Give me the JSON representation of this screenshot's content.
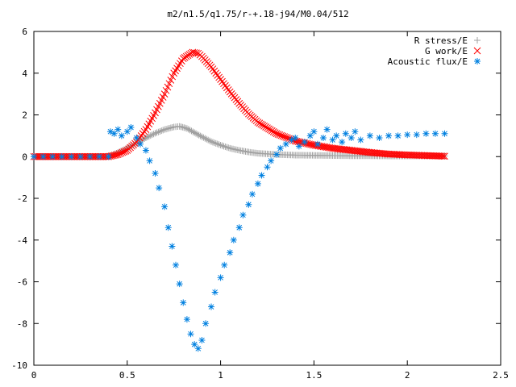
{
  "chart_data": {
    "type": "scatter",
    "title": "m2/n1.5/q1.75/r-+.18-j94/M0.04/512",
    "xlabel": "",
    "ylabel": "",
    "xlim": [
      0,
      2.5
    ],
    "ylim": [
      -10,
      6
    ],
    "xticks": [
      0,
      0.5,
      1,
      1.5,
      2,
      2.5
    ],
    "xtick_labels": [
      "0",
      "0.5",
      "1",
      "1.5",
      "2",
      "2.5"
    ],
    "yticks": [
      -10,
      -8,
      -6,
      -4,
      -2,
      0,
      2,
      4,
      6
    ],
    "ytick_labels": [
      "-10",
      "-8",
      "-6",
      "-4",
      "-2",
      "0",
      "2",
      "4",
      "6"
    ],
    "grid": false,
    "legend_position": "top-right",
    "series": [
      {
        "name": "R stress/E",
        "marker": "plus",
        "color": "#a0a0a0",
        "x": [
          0.0,
          0.4,
          0.45,
          0.5,
          0.55,
          0.6,
          0.65,
          0.7,
          0.75,
          0.78,
          0.82,
          0.86,
          0.9,
          0.95,
          1.0,
          1.05,
          1.1,
          1.15,
          1.2,
          1.3,
          1.4,
          1.5,
          1.6,
          1.7,
          1.8,
          1.9,
          2.0,
          2.1,
          2.2
        ],
        "y": [
          0.0,
          0.0,
          0.2,
          0.4,
          0.65,
          0.9,
          1.12,
          1.3,
          1.42,
          1.45,
          1.35,
          1.15,
          0.95,
          0.72,
          0.55,
          0.4,
          0.3,
          0.22,
          0.16,
          0.1,
          0.07,
          0.06,
          0.05,
          0.04,
          0.04,
          0.03,
          0.03,
          0.03,
          0.03
        ]
      },
      {
        "name": "G work/E",
        "marker": "cross",
        "color": "#ff0000",
        "x": [
          0.0,
          0.4,
          0.45,
          0.5,
          0.55,
          0.6,
          0.65,
          0.7,
          0.75,
          0.8,
          0.85,
          0.88,
          0.9,
          0.95,
          1.0,
          1.05,
          1.1,
          1.15,
          1.2,
          1.3,
          1.4,
          1.5,
          1.6,
          1.7,
          1.8,
          1.9,
          2.0,
          2.1,
          2.2
        ],
        "y": [
          0.0,
          0.0,
          0.1,
          0.3,
          0.7,
          1.3,
          2.1,
          3.0,
          4.0,
          4.7,
          5.0,
          4.95,
          4.8,
          4.3,
          3.7,
          3.1,
          2.55,
          2.05,
          1.65,
          1.1,
          0.75,
          0.55,
          0.4,
          0.3,
          0.2,
          0.12,
          0.08,
          0.05,
          0.02
        ]
      },
      {
        "name": "Acoustic flux/E",
        "marker": "star",
        "color": "#0080e0",
        "x": [
          0.0,
          0.05,
          0.1,
          0.15,
          0.2,
          0.25,
          0.3,
          0.35,
          0.4,
          0.41,
          0.43,
          0.45,
          0.47,
          0.5,
          0.52,
          0.55,
          0.57,
          0.6,
          0.62,
          0.65,
          0.67,
          0.7,
          0.72,
          0.74,
          0.76,
          0.78,
          0.8,
          0.82,
          0.84,
          0.86,
          0.88,
          0.9,
          0.92,
          0.95,
          0.97,
          1.0,
          1.02,
          1.05,
          1.07,
          1.1,
          1.12,
          1.15,
          1.17,
          1.2,
          1.22,
          1.25,
          1.27,
          1.3,
          1.32,
          1.35,
          1.38,
          1.4,
          1.42,
          1.45,
          1.48,
          1.5,
          1.52,
          1.55,
          1.57,
          1.6,
          1.62,
          1.65,
          1.67,
          1.7,
          1.72,
          1.75,
          1.8,
          1.85,
          1.9,
          1.95,
          2.0,
          2.05,
          2.1,
          2.15,
          2.2
        ],
        "y": [
          0.0,
          0.0,
          0.0,
          0.0,
          0.0,
          0.0,
          0.0,
          0.0,
          0.0,
          1.2,
          1.1,
          1.3,
          1.0,
          1.2,
          1.4,
          0.9,
          0.6,
          0.3,
          -0.2,
          -0.8,
          -1.5,
          -2.4,
          -3.4,
          -4.3,
          -5.2,
          -6.1,
          -7.0,
          -7.8,
          -8.5,
          -9.0,
          -9.2,
          -8.8,
          -8.0,
          -7.2,
          -6.5,
          -5.8,
          -5.2,
          -4.6,
          -4.0,
          -3.4,
          -2.8,
          -2.3,
          -1.8,
          -1.3,
          -0.9,
          -0.5,
          -0.2,
          0.1,
          0.4,
          0.6,
          0.8,
          0.9,
          0.5,
          0.7,
          1.0,
          1.2,
          0.6,
          0.9,
          1.3,
          0.8,
          1.0,
          0.7,
          1.1,
          0.9,
          1.2,
          0.8,
          1.0,
          0.9,
          1.0,
          1.0,
          1.05,
          1.05,
          1.1,
          1.1,
          1.1
        ]
      }
    ]
  }
}
